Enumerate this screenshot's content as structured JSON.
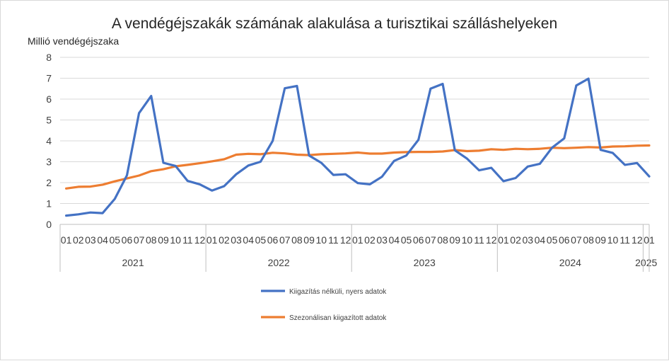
{
  "chart_data": {
    "type": "line",
    "title": "A vendégéjszakák számának alakulása a turisztikai szálláshelyeken",
    "ylabel": "Millió vendégéjszaka",
    "ylim": [
      0,
      8
    ],
    "yticks": [
      "0",
      "1",
      "2",
      "3",
      "4",
      "5",
      "6",
      "7",
      "8"
    ],
    "grid": true,
    "legend_position": "bottom",
    "month_labels": [
      "01",
      "02",
      "03",
      "04",
      "05",
      "06",
      "07",
      "08",
      "09",
      "10",
      "11",
      "12",
      "01",
      "02",
      "03",
      "04",
      "05",
      "06",
      "07",
      "08",
      "09",
      "10",
      "11",
      "12",
      "01",
      "02",
      "03",
      "04",
      "05",
      "06",
      "07",
      "08",
      "09",
      "10",
      "11",
      "12",
      "01",
      "02",
      "03",
      "04",
      "05",
      "06",
      "07",
      "08",
      "09",
      "10",
      "11",
      "12",
      "01"
    ],
    "years": [
      {
        "label": "2021",
        "months": 12
      },
      {
        "label": "2022",
        "months": 12
      },
      {
        "label": "2023",
        "months": 12
      },
      {
        "label": "2024",
        "months": 12
      },
      {
        "label": "2025",
        "months": 1
      }
    ],
    "series": [
      {
        "name": "Kiigazítás nélküli, nyers adatok",
        "color": "#4472c4",
        "values": [
          0.42,
          0.48,
          0.57,
          0.54,
          1.22,
          2.35,
          5.33,
          6.15,
          2.95,
          2.8,
          2.08,
          1.92,
          1.62,
          1.83,
          2.4,
          2.82,
          3.0,
          4.0,
          6.52,
          6.63,
          3.3,
          2.95,
          2.37,
          2.4,
          1.98,
          1.92,
          2.28,
          3.04,
          3.3,
          4.05,
          6.5,
          6.73,
          3.55,
          3.15,
          2.59,
          2.71,
          2.07,
          2.22,
          2.77,
          2.9,
          3.67,
          4.12,
          6.65,
          6.98,
          3.57,
          3.42,
          2.85,
          2.94,
          2.3
        ]
      },
      {
        "name": "Szezonálisan kiigazított adatok",
        "color": "#ed7d31",
        "values": [
          1.72,
          1.8,
          1.81,
          1.9,
          2.06,
          2.2,
          2.34,
          2.55,
          2.64,
          2.78,
          2.85,
          2.93,
          3.02,
          3.12,
          3.34,
          3.38,
          3.36,
          3.43,
          3.4,
          3.34,
          3.32,
          3.36,
          3.38,
          3.4,
          3.44,
          3.39,
          3.39,
          3.44,
          3.46,
          3.47,
          3.47,
          3.49,
          3.56,
          3.51,
          3.53,
          3.6,
          3.57,
          3.62,
          3.6,
          3.62,
          3.67,
          3.65,
          3.67,
          3.7,
          3.68,
          3.73,
          3.74,
          3.77,
          3.78
        ]
      }
    ]
  }
}
